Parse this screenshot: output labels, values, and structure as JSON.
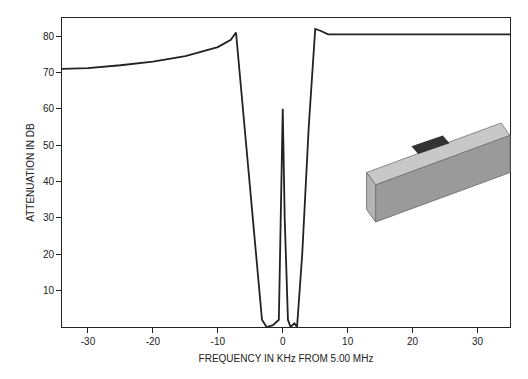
{
  "chart_data": {
    "type": "line",
    "x_label": "FREQUENCY IN KHz FROM 5.00 MHz",
    "y_label": "ATTENUATION IN DB",
    "x": [
      -34,
      -30,
      -25,
      -20,
      -15,
      -10,
      -8,
      -7.2,
      -3.2,
      -2.5,
      -1.5,
      -0.6,
      0,
      0.3,
      0.8,
      1.2,
      1.8,
      2.2,
      3,
      4,
      5,
      5.8,
      7,
      10,
      20,
      35
    ],
    "values": [
      71,
      71.2,
      72,
      73,
      74.5,
      77,
      79,
      81,
      2,
      0,
      0.5,
      2,
      60,
      30,
      2,
      0,
      1,
      0,
      20,
      55,
      82,
      81.5,
      80.5,
      80.5,
      80.5,
      80.5
    ],
    "color": "#222222",
    "xlim": [
      -34,
      35
    ],
    "ylim": [
      0,
      85
    ],
    "xticks": [
      -30,
      -20,
      -10,
      0,
      10,
      20,
      30
    ],
    "yticks": [
      10,
      20,
      30,
      40,
      50,
      60,
      70,
      80
    ],
    "grid": false
  }
}
